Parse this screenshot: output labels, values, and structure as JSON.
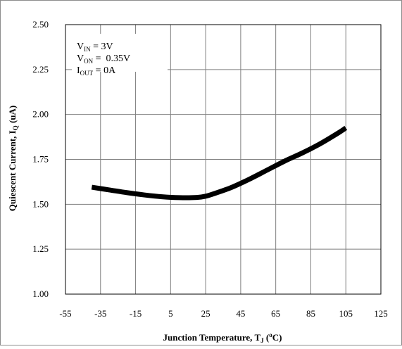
{
  "chart_data": {
    "type": "line",
    "xlabel": {
      "main": "Junction Temperature, T",
      "sub": "J",
      "unit_pre": " (",
      "unit_sup": "o",
      "unit_post": "C)"
    },
    "ylabel": {
      "main": "Quiescent Current, I",
      "sub": "Q",
      "unit": " (uA)"
    },
    "xlim": [
      -55,
      125
    ],
    "ylim": [
      1.0,
      2.5
    ],
    "x_ticks": [
      "-55",
      "-35",
      "-15",
      "5",
      "25",
      "45",
      "65",
      "85",
      "105",
      "125"
    ],
    "y_ticks": [
      "1.00",
      "1.25",
      "1.50",
      "1.75",
      "2.00",
      "2.25",
      "2.50"
    ],
    "grid": true,
    "annotation": [
      {
        "main": "V",
        "sub": "IN",
        "rest": " = 3V"
      },
      {
        "main": "V",
        "sub": "ON",
        "rest": " =  0.35V"
      },
      {
        "main": "I",
        "sub": "OUT",
        "rest": " = 0A"
      }
    ],
    "series": [
      {
        "color": "#000000",
        "x": [
          -40,
          -30,
          -20,
          -10,
          0,
          10,
          20,
          25,
          30,
          40,
          50,
          60,
          70,
          80,
          90,
          100,
          105
        ],
        "y": [
          1.595,
          1.58,
          1.565,
          1.552,
          1.542,
          1.537,
          1.538,
          1.545,
          1.56,
          1.595,
          1.64,
          1.69,
          1.74,
          1.785,
          1.835,
          1.893,
          1.925
        ]
      }
    ]
  }
}
